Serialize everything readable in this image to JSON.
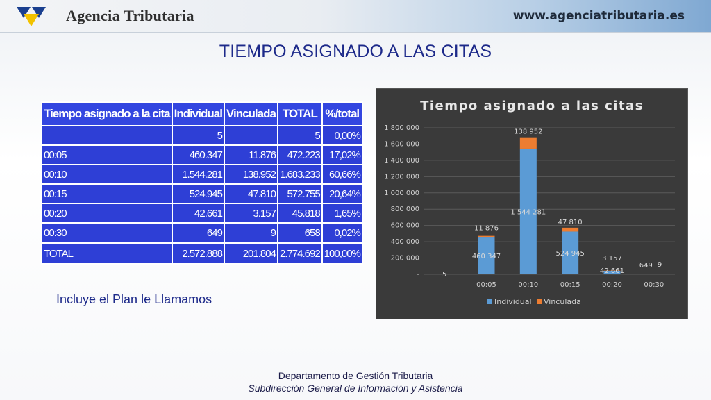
{
  "header": {
    "agency_name": "Agencia Tributaria",
    "url": "www.agenciatributaria.es",
    "logo_icon": "agencia-tributaria-logo-icon"
  },
  "slide_title": "TIEMPO ASIGNADO A LAS CITAS",
  "table": {
    "headers": [
      "Tiempo asignado a la cita",
      "Individual",
      "Vinculada",
      "TOTAL",
      "%/total"
    ],
    "rows": [
      [
        "",
        "5",
        "",
        "5",
        "0,00%"
      ],
      [
        "00:05",
        "460.347",
        "11.876",
        "472.223",
        "17,02%"
      ],
      [
        "00:10",
        "1.544.281",
        "138.952",
        "1.683.233",
        "60,66%"
      ],
      [
        "00:15",
        "524.945",
        "47.810",
        "572.755",
        "20,64%"
      ],
      [
        "00:20",
        "42.661",
        "3.157",
        "45.818",
        "1,65%"
      ],
      [
        "00:30",
        "649",
        "9",
        "658",
        "0,02%"
      ]
    ],
    "total_row": [
      "TOTAL",
      "2.572.888",
      "201.804",
      "2.774.692",
      "100,00%"
    ]
  },
  "note": "Incluye el Plan le Llamamos",
  "footer": {
    "line1": "Departamento de Gestión Tributaria",
    "line2": "Subdirección General de Información y Asistencia"
  },
  "colors": {
    "title": "#1d2a8a",
    "table_bg": "#2e3fd6",
    "chart_bg": "#3a3a3a",
    "individual": "#5b9bd5",
    "vinculada": "#ed7d31"
  },
  "chart_data": {
    "type": "bar",
    "stacked": true,
    "title": "Tiempo asignado a las citas",
    "categories": [
      "",
      "00:05",
      "00:10",
      "00:15",
      "00:20",
      "00:30"
    ],
    "series": [
      {
        "name": "Individual",
        "values": [
          5,
          460347,
          1544281,
          524945,
          42661,
          649
        ],
        "labels": [
          "5",
          "460 347",
          "1 544 281",
          "524 945",
          "42 661",
          "649"
        ]
      },
      {
        "name": "Vinculada",
        "values": [
          0,
          11876,
          138952,
          47810,
          3157,
          9
        ],
        "labels": [
          "",
          "11 876",
          "138 952",
          "47 810",
          "3 157",
          "9"
        ]
      }
    ],
    "ylim": [
      0,
      1800000
    ],
    "yticks": [
      0,
      200000,
      400000,
      600000,
      800000,
      1000000,
      1200000,
      1400000,
      1600000,
      1800000
    ],
    "ytick_labels": [
      "-",
      "200 000",
      "400 000",
      "600 000",
      "800 000",
      "1 000 000",
      "1 200 000",
      "1 400 000",
      "1 600 000",
      "1 800 000"
    ],
    "grid": true,
    "legend": "bottom"
  }
}
